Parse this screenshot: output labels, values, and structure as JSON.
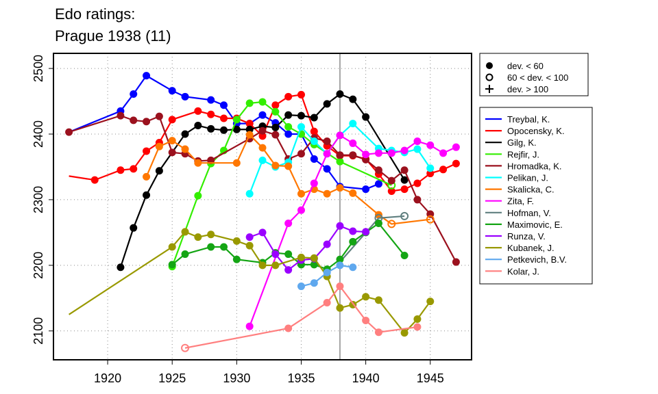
{
  "chart_data": {
    "type": "line",
    "title": [
      "Edo ratings:",
      "Prague 1938 (11)"
    ],
    "xlabel": "",
    "ylabel": "",
    "xlim": [
      1915.8,
      1948.2
    ],
    "ylim": [
      2056,
      2523
    ],
    "xticks": [
      1920,
      1925,
      1930,
      1935,
      1940,
      1945
    ],
    "yticks": [
      2100,
      2200,
      2300,
      2400,
      2500
    ],
    "grid": true,
    "marker_line": 1938,
    "marker_legend": {
      "placement": "top-right outside",
      "items": [
        {
          "symbol": "filled",
          "label": "dev. < 60"
        },
        {
          "symbol": "open",
          "label": "60 < dev. < 100"
        },
        {
          "symbol": "plus",
          "label": "dev. > 100"
        }
      ]
    },
    "legend_placement": "right outside",
    "series": [
      {
        "name": "Treybal, K.",
        "color": "#0000FF",
        "points": [
          [
            1917,
            2403,
            "n"
          ],
          [
            1921,
            2435,
            "f"
          ],
          [
            1922,
            2461,
            "f"
          ],
          [
            1923,
            2489,
            "f"
          ],
          [
            1925,
            2466,
            "f"
          ],
          [
            1926,
            2457,
            "f"
          ],
          [
            1928,
            2452,
            "f"
          ],
          [
            1929,
            2444,
            "f"
          ],
          [
            1930,
            2416,
            "f"
          ],
          [
            1931,
            2416,
            "f"
          ],
          [
            1932,
            2429,
            "f"
          ],
          [
            1933,
            2417,
            "f"
          ],
          [
            1934,
            2400,
            "f"
          ],
          [
            1935,
            2400,
            "f"
          ],
          [
            1936,
            2362,
            "f"
          ],
          [
            1937,
            2347,
            "f"
          ],
          [
            1938,
            2320,
            "f"
          ],
          [
            1940,
            2316,
            "f"
          ],
          [
            1941,
            2324,
            "f"
          ]
        ]
      },
      {
        "name": "Opocensky, K.",
        "color": "#FF0000",
        "points": [
          [
            1917,
            2336,
            "n"
          ],
          [
            1919,
            2330,
            "f"
          ],
          [
            1921,
            2345,
            "f"
          ],
          [
            1922,
            2347,
            "f"
          ],
          [
            1923,
            2374,
            "f"
          ],
          [
            1924,
            2387,
            "f"
          ],
          [
            1925,
            2422,
            "f"
          ],
          [
            1927,
            2435,
            "f"
          ],
          [
            1928,
            2430,
            "f"
          ],
          [
            1929,
            2424,
            "f"
          ],
          [
            1930,
            2424,
            "f"
          ],
          [
            1931,
            2416,
            "f"
          ],
          [
            1932,
            2397,
            "f"
          ],
          [
            1933,
            2444,
            "f"
          ],
          [
            1934,
            2457,
            "f"
          ],
          [
            1935,
            2460,
            "f"
          ],
          [
            1936,
            2404,
            "f"
          ],
          [
            1937,
            2382,
            "f"
          ],
          [
            1938,
            2367,
            "f"
          ],
          [
            1939,
            2367,
            "f"
          ],
          [
            1940,
            2362,
            "f"
          ],
          [
            1941,
            2339,
            "f"
          ],
          [
            1942,
            2313,
            "f"
          ],
          [
            1943,
            2316,
            "f"
          ],
          [
            1944,
            2325,
            "f"
          ],
          [
            1945,
            2340,
            "f"
          ],
          [
            1946,
            2346,
            "f"
          ],
          [
            1947,
            2355,
            "f"
          ]
        ]
      },
      {
        "name": "Gilg, K.",
        "color": "#000000",
        "points": [
          [
            1921,
            2197,
            "f"
          ],
          [
            1922,
            2257,
            "f"
          ],
          [
            1923,
            2307,
            "f"
          ],
          [
            1924,
            2344,
            "f"
          ],
          [
            1926,
            2400,
            "f"
          ],
          [
            1927,
            2413,
            "f"
          ],
          [
            1928,
            2408,
            "f"
          ],
          [
            1929,
            2406,
            "f"
          ],
          [
            1930,
            2407,
            "f"
          ],
          [
            1931,
            2407,
            "f"
          ],
          [
            1932,
            2412,
            "f"
          ],
          [
            1933,
            2410,
            "f"
          ],
          [
            1934,
            2429,
            "f"
          ],
          [
            1935,
            2428,
            "f"
          ],
          [
            1936,
            2425,
            "f"
          ],
          [
            1937,
            2446,
            "f"
          ],
          [
            1938,
            2461,
            "f"
          ],
          [
            1939,
            2453,
            "f"
          ],
          [
            1940,
            2426,
            "f"
          ],
          [
            1943,
            2330,
            "f"
          ]
        ]
      },
      {
        "name": "Rejfir, J.",
        "color": "#33EE00",
        "points": [
          [
            1925,
            2198,
            "f"
          ],
          [
            1927,
            2306,
            "f"
          ],
          [
            1928,
            2355,
            "f"
          ],
          [
            1929,
            2375,
            "f"
          ],
          [
            1930,
            2422,
            "f"
          ],
          [
            1931,
            2447,
            "f"
          ],
          [
            1932,
            2449,
            "f"
          ],
          [
            1933,
            2434,
            "f"
          ],
          [
            1934,
            2411,
            "f"
          ],
          [
            1935,
            2400,
            "f"
          ],
          [
            1936,
            2384,
            "f"
          ],
          [
            1938,
            2358,
            "f"
          ],
          [
            1942,
            2322,
            "o"
          ]
        ]
      },
      {
        "name": "Hromadka, K.",
        "color": "#9B111E",
        "points": [
          [
            1917,
            2403,
            "f"
          ],
          [
            1921,
            2428,
            "f"
          ],
          [
            1922,
            2421,
            "f"
          ],
          [
            1923,
            2419,
            "f"
          ],
          [
            1924,
            2427,
            "f"
          ],
          [
            1925,
            2372,
            "f"
          ],
          [
            1926,
            2370,
            "f"
          ],
          [
            1927,
            2359,
            "f"
          ],
          [
            1928,
            2360,
            "f"
          ],
          [
            1931,
            2393,
            "f"
          ],
          [
            1932,
            2405,
            "f"
          ],
          [
            1933,
            2399,
            "f"
          ],
          [
            1934,
            2362,
            "f"
          ],
          [
            1935,
            2370,
            "f"
          ],
          [
            1936,
            2394,
            "f"
          ],
          [
            1937,
            2389,
            "f"
          ],
          [
            1938,
            2368,
            "f"
          ],
          [
            1939,
            2368,
            "f"
          ],
          [
            1940,
            2361,
            "f"
          ],
          [
            1941,
            2345,
            "f"
          ],
          [
            1942,
            2329,
            "f"
          ],
          [
            1943,
            2345,
            "f"
          ],
          [
            1944,
            2300,
            "f"
          ],
          [
            1945,
            2278,
            "f"
          ],
          [
            1947,
            2205,
            "f"
          ]
        ]
      },
      {
        "name": "Pelikan, J.",
        "color": "#00FFFF",
        "points": [
          [
            1931,
            2309,
            "f"
          ],
          [
            1932,
            2360,
            "f"
          ],
          [
            1933,
            2350,
            "f"
          ],
          [
            1934,
            2357,
            "f"
          ],
          [
            1935,
            2411,
            "f"
          ],
          [
            1936,
            2389,
            "f"
          ],
          [
            1937,
            2370,
            "f"
          ],
          [
            1938,
            2398,
            "f"
          ],
          [
            1939,
            2416,
            "f"
          ],
          [
            1941,
            2378,
            "f"
          ],
          [
            1942,
            2375,
            "f"
          ],
          [
            1943,
            2372,
            "f"
          ],
          [
            1944,
            2377,
            "f"
          ],
          [
            1945,
            2348,
            "f"
          ]
        ]
      },
      {
        "name": "Skalicka, C.",
        "color": "#FF7700",
        "points": [
          [
            1923,
            2335,
            "f"
          ],
          [
            1924,
            2381,
            "f"
          ],
          [
            1925,
            2390,
            "f"
          ],
          [
            1926,
            2377,
            "f"
          ],
          [
            1927,
            2356,
            "f"
          ],
          [
            1930,
            2356,
            "f"
          ],
          [
            1931,
            2399,
            "f"
          ],
          [
            1932,
            2379,
            "f"
          ],
          [
            1933,
            2352,
            "f"
          ],
          [
            1934,
            2351,
            "f"
          ],
          [
            1935,
            2309,
            "f"
          ],
          [
            1936,
            2316,
            "f"
          ],
          [
            1937,
            2309,
            "f"
          ],
          [
            1938,
            2318,
            "f"
          ],
          [
            1939,
            2310,
            "f"
          ],
          [
            1941,
            2277,
            "f"
          ],
          [
            1942,
            2263,
            "o"
          ],
          [
            1945,
            2270,
            "o"
          ]
        ]
      },
      {
        "name": "Zita, F.",
        "color": "#FF00FF",
        "points": [
          [
            1931,
            2107,
            "f"
          ],
          [
            1934,
            2264,
            "f"
          ],
          [
            1935,
            2284,
            "f"
          ],
          [
            1936,
            2325,
            "f"
          ],
          [
            1937,
            2370,
            "f"
          ],
          [
            1938,
            2398,
            "f"
          ],
          [
            1939,
            2386,
            "f"
          ],
          [
            1940,
            2369,
            "f"
          ],
          [
            1941,
            2371,
            "f"
          ],
          [
            1942,
            2371,
            "f"
          ],
          [
            1943,
            2375,
            "f"
          ],
          [
            1944,
            2389,
            "f"
          ],
          [
            1945,
            2383,
            "f"
          ],
          [
            1946,
            2371,
            "f"
          ],
          [
            1947,
            2380,
            "f"
          ]
        ]
      },
      {
        "name": "Hofman, V.",
        "color": "#5F7F7F",
        "points": [
          [
            1938,
            2205,
            "n"
          ],
          [
            1941,
            2272,
            "o"
          ],
          [
            1943,
            2275,
            "o"
          ]
        ]
      },
      {
        "name": "Maximovic, E.",
        "color": "#14A514",
        "points": [
          [
            1925,
            2201,
            "f"
          ],
          [
            1926,
            2217,
            "f"
          ],
          [
            1928,
            2228,
            "f"
          ],
          [
            1929,
            2228,
            "f"
          ],
          [
            1930,
            2209,
            "f"
          ],
          [
            1932,
            2204,
            "f"
          ],
          [
            1933,
            2219,
            "f"
          ],
          [
            1934,
            2217,
            "f"
          ],
          [
            1935,
            2201,
            "f"
          ],
          [
            1936,
            2201,
            "f"
          ],
          [
            1937,
            2194,
            "f"
          ],
          [
            1938,
            2209,
            "f"
          ],
          [
            1939,
            2236,
            "f"
          ],
          [
            1940,
            2250,
            "f"
          ],
          [
            1941,
            2264,
            "f"
          ],
          [
            1943,
            2215,
            "f"
          ]
        ]
      },
      {
        "name": "Runza, V.",
        "color": "#9A00FF",
        "points": [
          [
            1931,
            2243,
            "f"
          ],
          [
            1932,
            2250,
            "f"
          ],
          [
            1933,
            2217,
            "f"
          ],
          [
            1934,
            2193,
            "f"
          ],
          [
            1935,
            2208,
            "f"
          ],
          [
            1936,
            2210,
            "f"
          ],
          [
            1937,
            2232,
            "f"
          ],
          [
            1938,
            2260,
            "f"
          ],
          [
            1939,
            2252,
            "f"
          ],
          [
            1940,
            2251,
            "f"
          ]
        ]
      },
      {
        "name": "Kubanek, J.",
        "color": "#999900",
        "points": [
          [
            1917,
            2125,
            "n"
          ],
          [
            1925,
            2228,
            "f"
          ],
          [
            1926,
            2251,
            "f"
          ],
          [
            1927,
            2243,
            "f"
          ],
          [
            1928,
            2247,
            "f"
          ],
          [
            1930,
            2237,
            "f"
          ],
          [
            1931,
            2230,
            "f"
          ],
          [
            1932,
            2200,
            "f"
          ],
          [
            1933,
            2200,
            "f"
          ],
          [
            1935,
            2212,
            "f"
          ],
          [
            1936,
            2211,
            "f"
          ],
          [
            1937,
            2183,
            "f"
          ],
          [
            1938,
            2135,
            "f"
          ],
          [
            1939,
            2140,
            "f"
          ],
          [
            1940,
            2152,
            "f"
          ],
          [
            1941,
            2147,
            "f"
          ],
          [
            1943,
            2097,
            "f"
          ],
          [
            1944,
            2118,
            "f"
          ],
          [
            1945,
            2145,
            "f"
          ]
        ]
      },
      {
        "name": "Petkevich, B.V.",
        "color": "#5FA8EE",
        "points": [
          [
            1935,
            2168,
            "f"
          ],
          [
            1936,
            2173,
            "f"
          ],
          [
            1937,
            2189,
            "f"
          ],
          [
            1938,
            2200,
            "f"
          ],
          [
            1939,
            2197,
            "f"
          ]
        ]
      },
      {
        "name": "Kolar, J.",
        "color": "#FF7F7F",
        "points": [
          [
            1926,
            2074,
            "o"
          ],
          [
            1934,
            2104,
            "f"
          ],
          [
            1937,
            2143,
            "f"
          ],
          [
            1938,
            2168,
            "f"
          ],
          [
            1940,
            2116,
            "f"
          ],
          [
            1941,
            2098,
            "f"
          ],
          [
            1944,
            2106,
            "f"
          ]
        ]
      }
    ]
  }
}
